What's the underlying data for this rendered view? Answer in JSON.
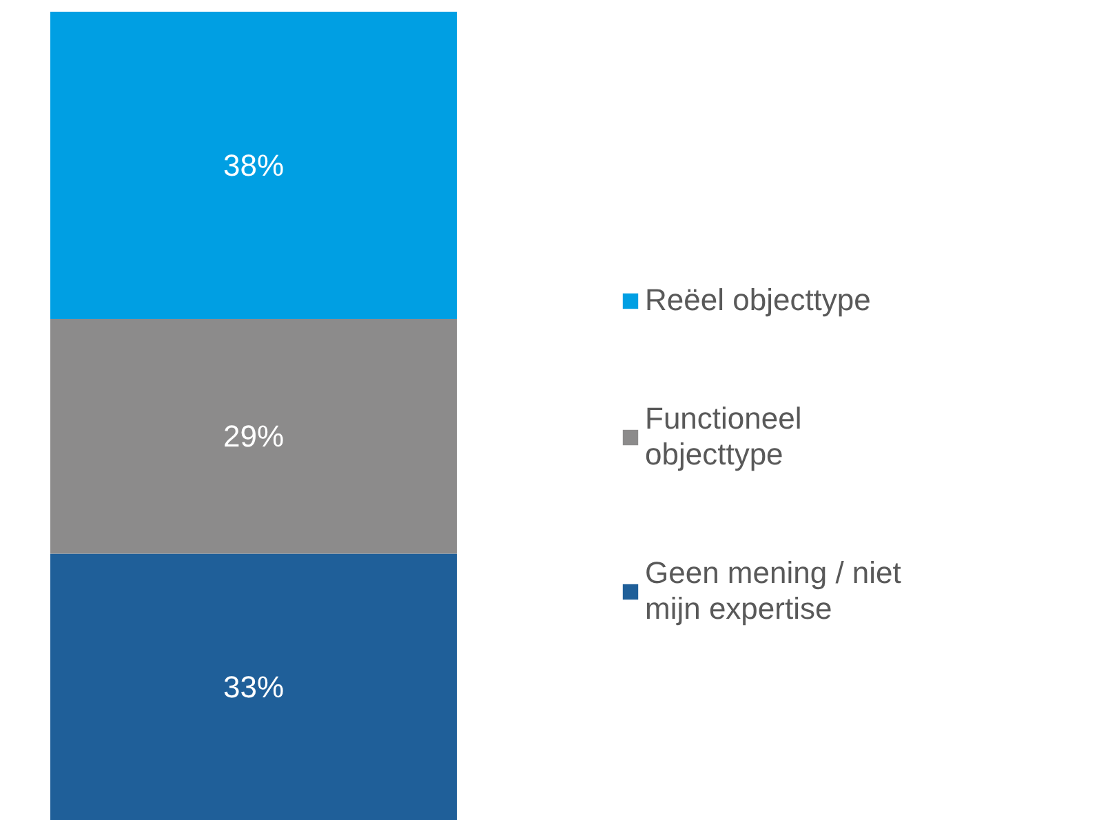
{
  "chart_data": {
    "type": "bar",
    "stacked": true,
    "categories": [
      null
    ],
    "legend": "right",
    "series": [
      {
        "name": "Geen mening / niet mijn expertise",
        "color": "#1f5f99",
        "values": [
          33
        ],
        "value_labels": [
          "33%"
        ]
      },
      {
        "name": "Functioneel objecttype",
        "color": "#8c8b8b",
        "values": [
          29
        ],
        "value_labels": [
          "29%"
        ]
      },
      {
        "name": "Reëel objecttype",
        "color": "#009fe3",
        "values": [
          38
        ],
        "value_labels": [
          "38%"
        ]
      }
    ]
  }
}
